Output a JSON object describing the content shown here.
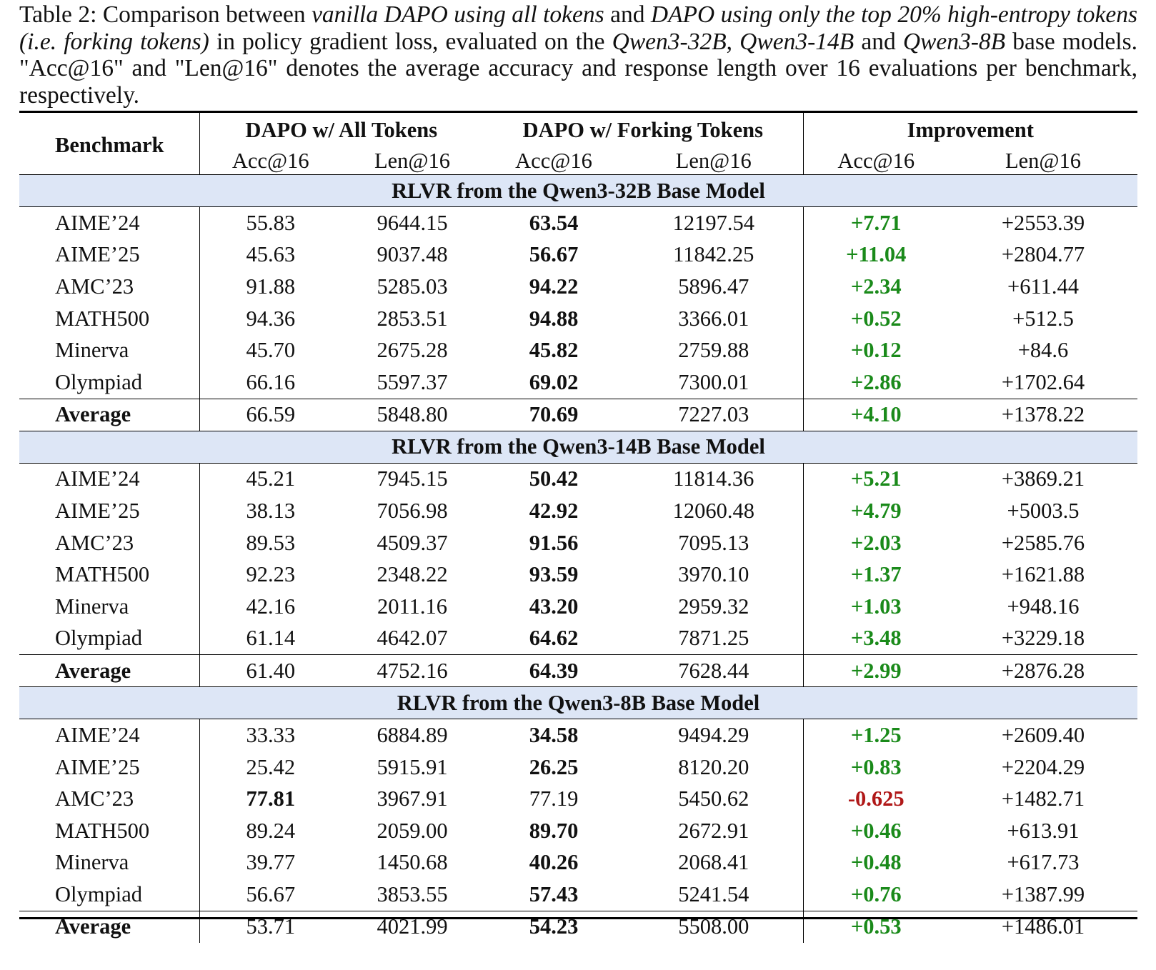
{
  "caption": {
    "p1": "Table 2: Comparison between ",
    "i1": "vanilla DAPO using all tokens",
    "p2": " and ",
    "i2": "DAPO using only the top 20% high-entropy tokens (i.e. forking tokens)",
    "p3": " in policy gradient loss, evaluated on the ",
    "i3": "Qwen3-32B",
    "p4": ", ",
    "i4": "Qwen3-14B",
    "p5": " and ",
    "i5": "Qwen3-8B",
    "p6": " base models.  \"Acc@16\" and \"Len@16\" denotes the average accuracy and response length over 16 evaluations per benchmark, respectively."
  },
  "header": {
    "benchmark": "Benchmark",
    "group_all": "DAPO w/ All Tokens",
    "group_fork": "DAPO w/ Forking Tokens",
    "group_impr": "Improvement",
    "acc": "Acc@16",
    "len": "Len@16"
  },
  "colors": {
    "positive": "#1a8a1a",
    "negative": "#b01818",
    "section_bg": "#dde6f6"
  },
  "sections": [
    {
      "title": "RLVR from the Qwen3-32B Base Model",
      "rows": [
        {
          "name": "AIME’24",
          "all_acc": "55.83",
          "all_len": "9644.15",
          "fork_acc": "63.54",
          "fork_len": "12197.54",
          "imp_acc": "+7.71",
          "imp_len": "+2553.39"
        },
        {
          "name": "AIME’25",
          "all_acc": "45.63",
          "all_len": "9037.48",
          "fork_acc": "56.67",
          "fork_len": "11842.25",
          "imp_acc": "+11.04",
          "imp_len": "+2804.77"
        },
        {
          "name": "AMC’23",
          "all_acc": "91.88",
          "all_len": "5285.03",
          "fork_acc": "94.22",
          "fork_len": "5896.47",
          "imp_acc": "+2.34",
          "imp_len": "+611.44"
        },
        {
          "name": "MATH500",
          "all_acc": "94.36",
          "all_len": "2853.51",
          "fork_acc": "94.88",
          "fork_len": "3366.01",
          "imp_acc": "+0.52",
          "imp_len": "+512.5"
        },
        {
          "name": "Minerva",
          "all_acc": "45.70",
          "all_len": "2675.28",
          "fork_acc": "45.82",
          "fork_len": "2759.88",
          "imp_acc": "+0.12",
          "imp_len": "+84.6"
        },
        {
          "name": "Olympiad",
          "all_acc": "66.16",
          "all_len": "5597.37",
          "fork_acc": "69.02",
          "fork_len": "7300.01",
          "imp_acc": "+2.86",
          "imp_len": "+1702.64"
        }
      ],
      "average": {
        "name": "Average",
        "all_acc": "66.59",
        "all_len": "5848.80",
        "fork_acc": "70.69",
        "fork_len": "7227.03",
        "imp_acc": "+4.10",
        "imp_len": "+1378.22"
      }
    },
    {
      "title": "RLVR from the Qwen3-14B Base Model",
      "rows": [
        {
          "name": "AIME’24",
          "all_acc": "45.21",
          "all_len": "7945.15",
          "fork_acc": "50.42",
          "fork_len": "11814.36",
          "imp_acc": "+5.21",
          "imp_len": "+3869.21"
        },
        {
          "name": "AIME’25",
          "all_acc": "38.13",
          "all_len": "7056.98",
          "fork_acc": "42.92",
          "fork_len": "12060.48",
          "imp_acc": "+4.79",
          "imp_len": "+5003.5"
        },
        {
          "name": "AMC’23",
          "all_acc": "89.53",
          "all_len": "4509.37",
          "fork_acc": "91.56",
          "fork_len": "7095.13",
          "imp_acc": "+2.03",
          "imp_len": "+2585.76"
        },
        {
          "name": "MATH500",
          "all_acc": "92.23",
          "all_len": "2348.22",
          "fork_acc": "93.59",
          "fork_len": "3970.10",
          "imp_acc": "+1.37",
          "imp_len": "+1621.88"
        },
        {
          "name": "Minerva",
          "all_acc": "42.16",
          "all_len": "2011.16",
          "fork_acc": "43.20",
          "fork_len": "2959.32",
          "imp_acc": "+1.03",
          "imp_len": "+948.16"
        },
        {
          "name": "Olympiad",
          "all_acc": "61.14",
          "all_len": "4642.07",
          "fork_acc": "64.62",
          "fork_len": "7871.25",
          "imp_acc": "+3.48",
          "imp_len": "+3229.18"
        }
      ],
      "average": {
        "name": "Average",
        "all_acc": "61.40",
        "all_len": "4752.16",
        "fork_acc": "64.39",
        "fork_len": "7628.44",
        "imp_acc": "+2.99",
        "imp_len": "+2876.28"
      }
    },
    {
      "title": "RLVR from the Qwen3-8B Base Model",
      "rows": [
        {
          "name": "AIME’24",
          "all_acc": "33.33",
          "all_len": "6884.89",
          "fork_acc": "34.58",
          "fork_len": "9494.29",
          "imp_acc": "+1.25",
          "imp_len": "+2609.40"
        },
        {
          "name": "AIME’25",
          "all_acc": "25.42",
          "all_len": "5915.91",
          "fork_acc": "26.25",
          "fork_len": "8120.20",
          "imp_acc": "+0.83",
          "imp_len": "+2204.29"
        },
        {
          "name": "AMC’23",
          "all_acc": "77.81",
          "all_len": "3967.91",
          "fork_acc": "77.19",
          "fork_len": "5450.62",
          "imp_acc": "-0.625",
          "imp_len": "+1482.71",
          "all_bold": true
        },
        {
          "name": "MATH500",
          "all_acc": "89.24",
          "all_len": "2059.00",
          "fork_acc": "89.70",
          "fork_len": "2672.91",
          "imp_acc": "+0.46",
          "imp_len": "+613.91"
        },
        {
          "name": "Minerva",
          "all_acc": "39.77",
          "all_len": "1450.68",
          "fork_acc": "40.26",
          "fork_len": "2068.41",
          "imp_acc": "+0.48",
          "imp_len": "+617.73"
        },
        {
          "name": "Olympiad",
          "all_acc": "56.67",
          "all_len": "3853.55",
          "fork_acc": "57.43",
          "fork_len": "5241.54",
          "imp_acc": "+0.76",
          "imp_len": "+1387.99"
        }
      ],
      "average": {
        "name": "Average",
        "all_acc": "53.71",
        "all_len": "4021.99",
        "fork_acc": "54.23",
        "fork_len": "5508.00",
        "imp_acc": "+0.53",
        "imp_len": "+1486.01"
      }
    }
  ]
}
